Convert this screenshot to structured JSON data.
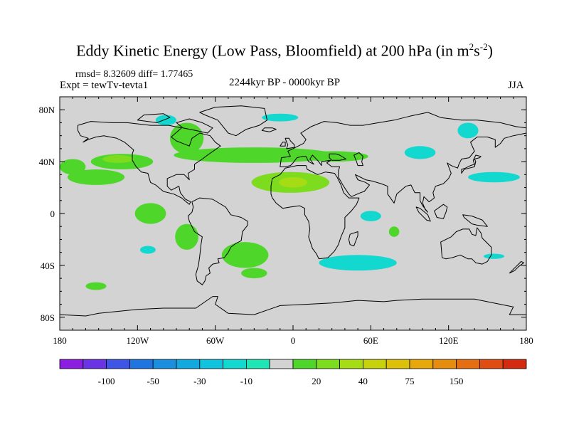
{
  "header": {
    "title_main": "Eddy Kinetic Energy (Low Pass, Bloomfield) at 200 hPa (in m",
    "title_sup1": "2",
    "title_mid": "s",
    "title_sup2": "-2",
    "title_end": ")",
    "stats": "rmsd= 8.32609 diff= 1.77465",
    "experiment": "Expt = tewTv-tevta1",
    "period": "2244kyr BP - 0000kyr BP",
    "season": "JJA"
  },
  "chart_data": {
    "type": "heatmap",
    "title": "Eddy Kinetic Energy (Low Pass, Bloomfield) at 200 hPa (in m^2 s^-2)",
    "subtitle": "2244kyr BP - 0000kyr BP",
    "season": "JJA",
    "xlim": [
      -180,
      180
    ],
    "ylim": [
      -90,
      90
    ],
    "x_ticks": [
      {
        "value": -180,
        "label": "180"
      },
      {
        "value": -120,
        "label": "120W"
      },
      {
        "value": -60,
        "label": "60W"
      },
      {
        "value": 0,
        "label": "0"
      },
      {
        "value": 60,
        "label": "60E"
      },
      {
        "value": 120,
        "label": "120E"
      },
      {
        "value": 180,
        "label": "180"
      }
    ],
    "y_ticks": [
      {
        "value": 80,
        "label": "80N"
      },
      {
        "value": 40,
        "label": "40N"
      },
      {
        "value": 0,
        "label": "0"
      },
      {
        "value": -40,
        "label": "40S"
      },
      {
        "value": -80,
        "label": "80S"
      }
    ],
    "background_color": "#d3d3d3",
    "colorbar": {
      "colors": [
        "#8b1ee0",
        "#6a33e6",
        "#3f55e6",
        "#1e74e0",
        "#1a8fe0",
        "#12a8e0",
        "#10c4e0",
        "#12d8d0",
        "#1ee6b4",
        "#d3d3d3",
        "#4fd62a",
        "#7ddc1e",
        "#a6dc14",
        "#c8d20c",
        "#dcc00a",
        "#e6a80a",
        "#e68c0f",
        "#e66e12",
        "#e04c12",
        "#d42a0f"
      ],
      "labels": [
        {
          "boundary": 2,
          "text": "-100"
        },
        {
          "boundary": 4,
          "text": "-50"
        },
        {
          "boundary": 6,
          "text": "-30"
        },
        {
          "boundary": 8,
          "text": "-10"
        },
        {
          "boundary": 11,
          "text": "20"
        },
        {
          "boundary": 13,
          "text": "40"
        },
        {
          "boundary": 15,
          "text": "75"
        },
        {
          "boundary": 17,
          "text": "150"
        }
      ]
    },
    "regions": [
      {
        "name": "gulf-of-alaska",
        "lon": -152,
        "lat": 28,
        "rlon": 22,
        "rlat": 6,
        "value": 20,
        "color": "#4fd62a"
      },
      {
        "name": "north-pacific-west",
        "lon": -170,
        "lat": 36,
        "rlon": 10,
        "rlat": 6,
        "value": 25,
        "color": "#4fd62a"
      },
      {
        "name": "north-america-band",
        "lon": -132,
        "lat": 40,
        "rlon": 24,
        "rlat": 6,
        "value": 22,
        "color": "#4fd62a"
      },
      {
        "name": "north-america-core",
        "lon": -135,
        "lat": 42,
        "rlon": 12,
        "rlat": 3,
        "value": 28,
        "color": "#7ddc1e"
      },
      {
        "name": "hudson-bay",
        "lon": -82,
        "lat": 58,
        "rlon": 13,
        "rlat": 12,
        "value": 22,
        "color": "#4fd62a"
      },
      {
        "name": "north-atlantic-band",
        "lon": -30,
        "lat": 45,
        "rlon": 62,
        "rlat": 6,
        "value": 20,
        "color": "#4fd62a"
      },
      {
        "name": "europe-band",
        "lon": 32,
        "lat": 44,
        "rlon": 26,
        "rlat": 4,
        "value": 20,
        "color": "#4fd62a"
      },
      {
        "name": "north-africa",
        "lon": -2,
        "lat": 24,
        "rlon": 30,
        "rlat": 8,
        "value": 25,
        "color": "#7ddc1e"
      },
      {
        "name": "north-africa-core",
        "lon": 0,
        "lat": 24,
        "rlon": 11,
        "rlat": 4,
        "value": 35,
        "color": "#a6dc14"
      },
      {
        "name": "central-pacific",
        "lon": -110,
        "lat": 0,
        "rlon": 12,
        "rlat": 8,
        "value": 20,
        "color": "#4fd62a"
      },
      {
        "name": "south-america-west",
        "lon": -82,
        "lat": -18,
        "rlon": 9,
        "rlat": 10,
        "value": 20,
        "color": "#4fd62a"
      },
      {
        "name": "south-atlantic",
        "lon": -37,
        "lat": -32,
        "rlon": 18,
        "rlat": 10,
        "value": 20,
        "color": "#4fd62a"
      },
      {
        "name": "south-atlantic-south",
        "lon": -30,
        "lat": -46,
        "rlon": 10,
        "rlat": 4,
        "value": 20,
        "color": "#4fd62a"
      },
      {
        "name": "south-pacific",
        "lon": -152,
        "lat": -56,
        "rlon": 8,
        "rlat": 3,
        "value": 20,
        "color": "#4fd62a"
      },
      {
        "name": "madagascar-east",
        "lon": 78,
        "lat": -14,
        "rlon": 4,
        "rlat": 4,
        "value": 20,
        "color": "#4fd62a"
      },
      {
        "name": "arctic-north-atlantic",
        "lon": -10,
        "lat": 74,
        "rlon": 14,
        "rlat": 3,
        "value": -15,
        "color": "#12d8d0"
      },
      {
        "name": "alaska-arctic",
        "lon": -98,
        "lat": 72,
        "rlon": 8,
        "rlat": 4,
        "value": -15,
        "color": "#12d8d0"
      },
      {
        "name": "east-asia",
        "lon": 135,
        "lat": 64,
        "rlon": 8,
        "rlat": 6,
        "value": -15,
        "color": "#12d8d0"
      },
      {
        "name": "central-asia",
        "lon": 98,
        "lat": 47,
        "rlon": 12,
        "rlat": 5,
        "value": -15,
        "color": "#12d8d0"
      },
      {
        "name": "japan-east",
        "lon": 155,
        "lat": 28,
        "rlon": 20,
        "rlat": 4,
        "value": -15,
        "color": "#12d8d0"
      },
      {
        "name": "indian-ocean",
        "lon": 60,
        "lat": -2,
        "rlon": 8,
        "rlat": 4,
        "value": -15,
        "color": "#12d8d0"
      },
      {
        "name": "south-africa-indian",
        "lon": 50,
        "lat": -38,
        "rlon": 30,
        "rlat": 6,
        "value": -15,
        "color": "#12d8d0"
      },
      {
        "name": "south-pacific-east",
        "lon": -112,
        "lat": -28,
        "rlon": 6,
        "rlat": 3,
        "value": -15,
        "color": "#12d8d0"
      },
      {
        "name": "southwest-pacific",
        "lon": 155,
        "lat": -33,
        "rlon": 8,
        "rlat": 2,
        "value": -15,
        "color": "#12d8d0"
      }
    ]
  }
}
